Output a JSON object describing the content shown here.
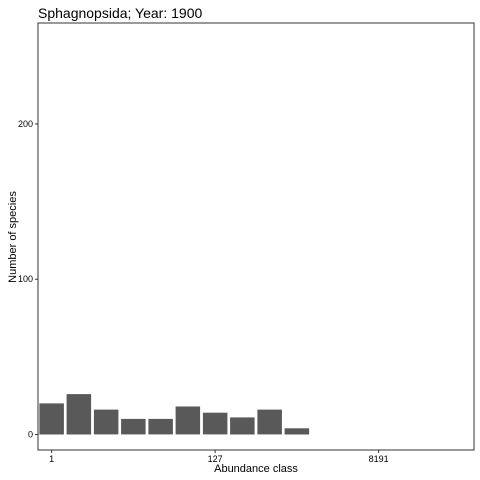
{
  "chart_data": {
    "type": "bar",
    "title": "Sphagnopsida; Year: 1900",
    "xlabel": "Abundance class",
    "ylabel": "Number of species",
    "x_tick_labels": [
      "1",
      "127",
      "8191"
    ],
    "x_tick_class_index": [
      1,
      7,
      13
    ],
    "y_ticks": [
      0,
      100,
      200
    ],
    "ylim": [
      -10,
      265
    ],
    "xlim": [
      0.5,
      16.5
    ],
    "categories": [
      1,
      2,
      3,
      4,
      5,
      6,
      7,
      8,
      9,
      10,
      11
    ],
    "values": [
      20,
      26,
      16,
      10,
      10,
      18,
      14,
      11,
      16,
      4,
      0
    ],
    "bar_color": "#595959",
    "grid": false,
    "legend": "none"
  }
}
